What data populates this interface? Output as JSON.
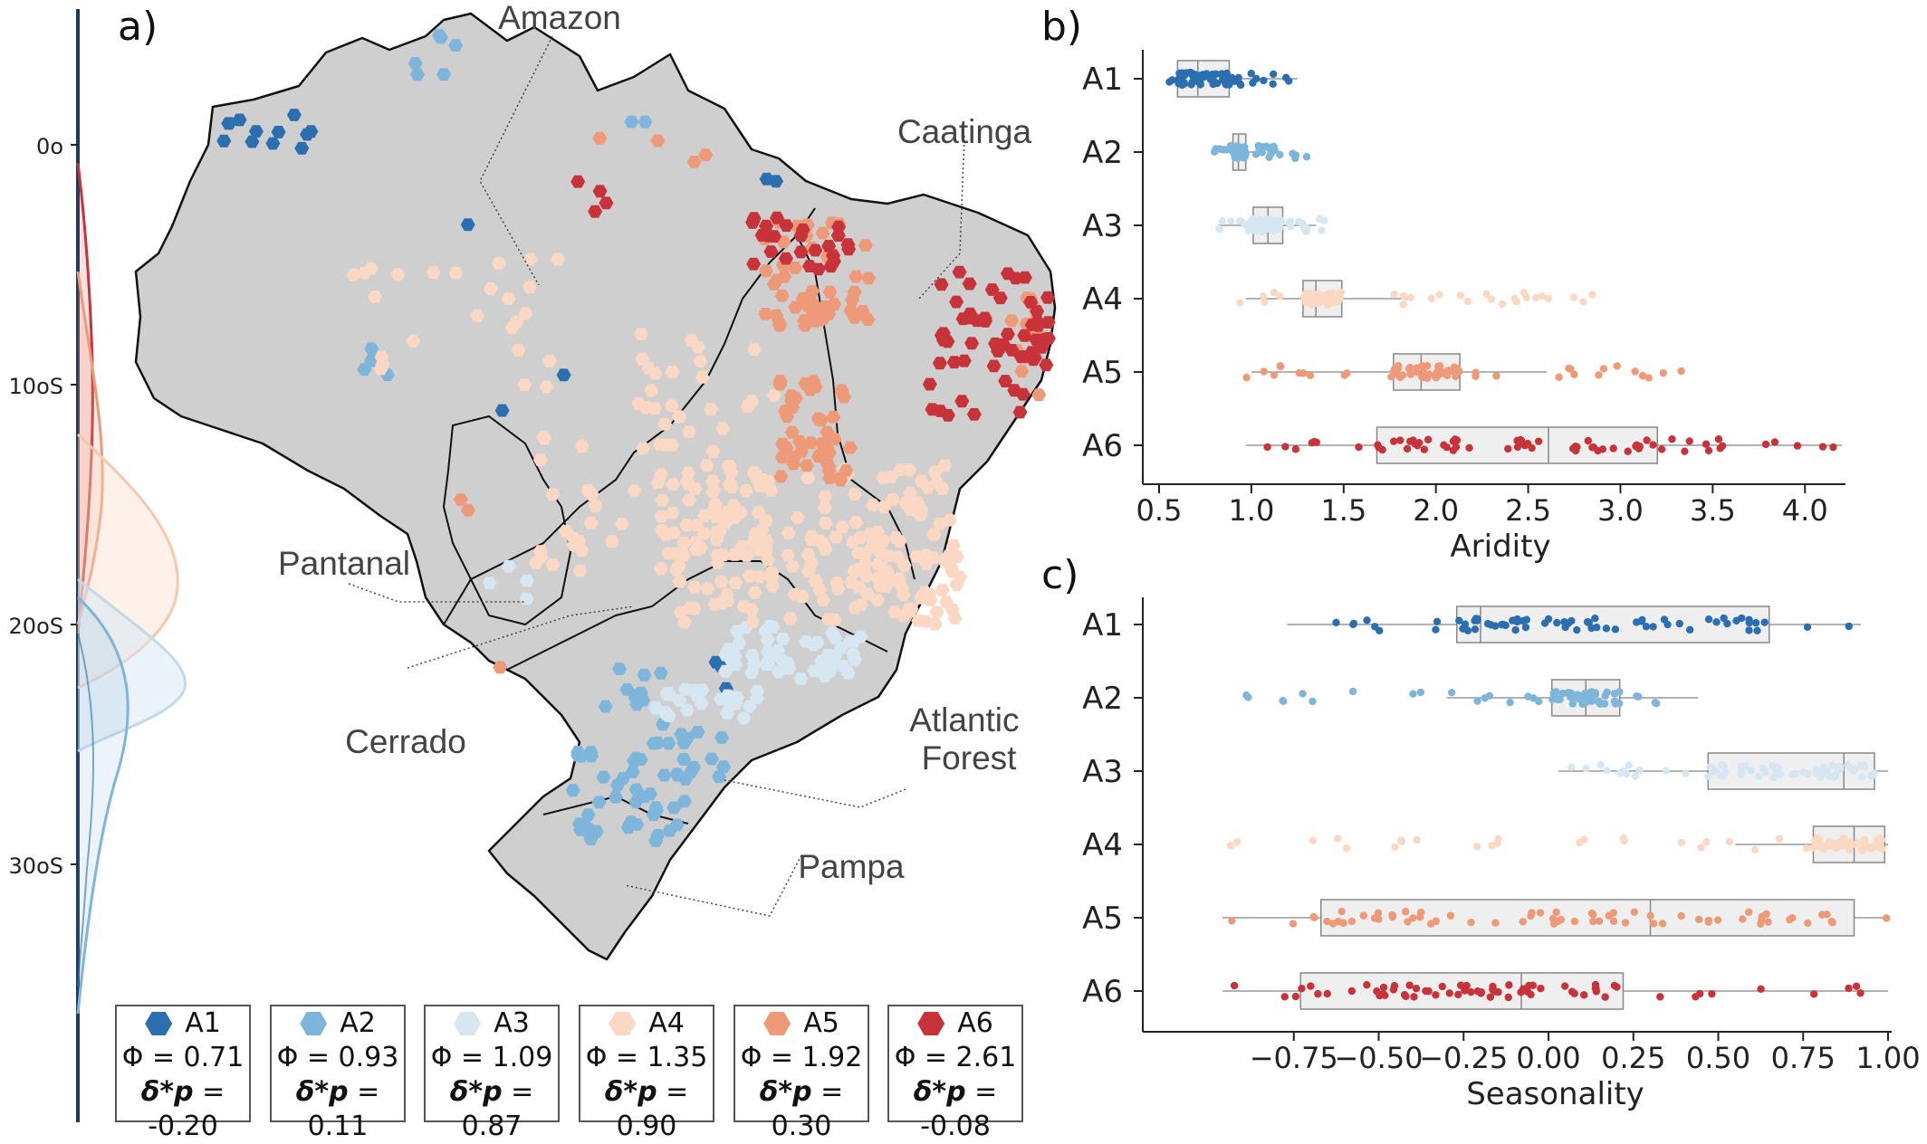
{
  "panels": {
    "a": "a)",
    "b": "b)",
    "c": "c)"
  },
  "map": {
    "lat_ticks": [
      "0o",
      "10oS",
      "20oS",
      "30oS"
    ],
    "regions": [
      "Amazon",
      "Caatinga",
      "Pantanal",
      "Cerrado",
      "Atlantic\nForest",
      "Pampa"
    ]
  },
  "colors": {
    "A1": "#2b6fb0",
    "A2": "#7db6da",
    "A3": "#d6e7f2",
    "A4": "#fad8c3",
    "A5": "#ee9a78",
    "A6": "#c8333a"
  },
  "legend": [
    {
      "cls": "A1",
      "phi": "Φ = 0.71",
      "delta_label": "δ*p",
      "delta": "= -0.20"
    },
    {
      "cls": "A2",
      "phi": "Φ = 0.93",
      "delta_label": "δ*p",
      "delta": "= 0.11"
    },
    {
      "cls": "A3",
      "phi": "Φ = 1.09",
      "delta_label": "δ*p",
      "delta": "= 0.87"
    },
    {
      "cls": "A4",
      "phi": "Φ = 1.35",
      "delta_label": "δ*p",
      "delta": "= 0.90"
    },
    {
      "cls": "A5",
      "phi": "Φ = 1.92",
      "delta_label": "δ*p",
      "delta": "= 0.30"
    },
    {
      "cls": "A6",
      "phi": "Φ = 2.61",
      "delta_label": "δ*p",
      "delta": "= -0.08"
    }
  ],
  "chart_data": [
    {
      "type": "box",
      "panel": "b",
      "xlabel": "Aridity",
      "xlim": [
        0.5,
        4.2
      ],
      "xticks": [
        "0.5",
        "1.0",
        "1.5",
        "2.0",
        "2.5",
        "3.0",
        "3.5",
        "4.0"
      ],
      "xtick_values": [
        0.5,
        1.0,
        1.5,
        2.0,
        2.5,
        3.0,
        3.5,
        4.0
      ],
      "categories": [
        "A1",
        "A2",
        "A3",
        "A4",
        "A5",
        "A6"
      ],
      "boxes": [
        {
          "name": "A1",
          "q1": 0.6,
          "median": 0.71,
          "q3": 0.88,
          "min": 0.55,
          "max": 1.25
        },
        {
          "name": "A2",
          "q1": 0.9,
          "median": 0.93,
          "q3": 0.97,
          "min": 0.83,
          "max": 1.02
        },
        {
          "name": "A3",
          "q1": 1.01,
          "median": 1.09,
          "q3": 1.17,
          "min": 0.82,
          "max": 1.35
        },
        {
          "name": "A4",
          "q1": 1.28,
          "median": 1.35,
          "q3": 1.49,
          "min": 0.97,
          "max": 1.86
        },
        {
          "name": "A5",
          "q1": 1.77,
          "median": 1.92,
          "q3": 2.13,
          "min": 1.0,
          "max": 2.6
        },
        {
          "name": "A6",
          "q1": 1.68,
          "median": 2.61,
          "q3": 3.2,
          "min": 0.97,
          "max": 4.2
        }
      ],
      "points_range": [
        [
          0.55,
          1.27
        ],
        [
          0.8,
          1.32
        ],
        [
          0.8,
          1.4
        ],
        [
          0.87,
          2.9
        ],
        [
          0.9,
          3.35
        ],
        [
          0.97,
          4.2
        ]
      ]
    },
    {
      "type": "box",
      "panel": "c",
      "xlabel": "Seasonality",
      "xlim": [
        -0.96,
        1.0
      ],
      "xticks": [
        "−0.75",
        "−0.50",
        "−0.25",
        "0.00",
        "0.25",
        "0.50",
        "0.75",
        "1.00"
      ],
      "xtick_values": [
        -0.75,
        -0.5,
        -0.25,
        0.0,
        0.25,
        0.5,
        0.75,
        1.0
      ],
      "categories": [
        "A1",
        "A2",
        "A3",
        "A4",
        "A5",
        "A6"
      ],
      "boxes": [
        {
          "name": "A1",
          "q1": -0.27,
          "median": -0.2,
          "q3": 0.65,
          "min": -0.77,
          "max": 0.92
        },
        {
          "name": "A2",
          "q1": 0.01,
          "median": 0.11,
          "q3": 0.21,
          "min": -0.3,
          "max": 0.44
        },
        {
          "name": "A3",
          "q1": 0.47,
          "median": 0.87,
          "q3": 0.96,
          "min": 0.03,
          "max": 1.0
        },
        {
          "name": "A4",
          "q1": 0.78,
          "median": 0.9,
          "q3": 0.99,
          "min": 0.55,
          "max": 1.0
        },
        {
          "name": "A5",
          "q1": -0.67,
          "median": 0.3,
          "q3": 0.9,
          "min": -0.96,
          "max": 1.0
        },
        {
          "name": "A6",
          "q1": -0.73,
          "median": -0.08,
          "q3": 0.22,
          "min": -0.96,
          "max": 1.0
        }
      ],
      "points_range": [
        [
          -0.77,
          0.92
        ],
        [
          -0.95,
          0.44
        ],
        [
          0.03,
          1.0
        ],
        [
          -0.95,
          1.0
        ],
        [
          -0.96,
          1.0
        ],
        [
          -0.96,
          1.0
        ]
      ]
    }
  ]
}
